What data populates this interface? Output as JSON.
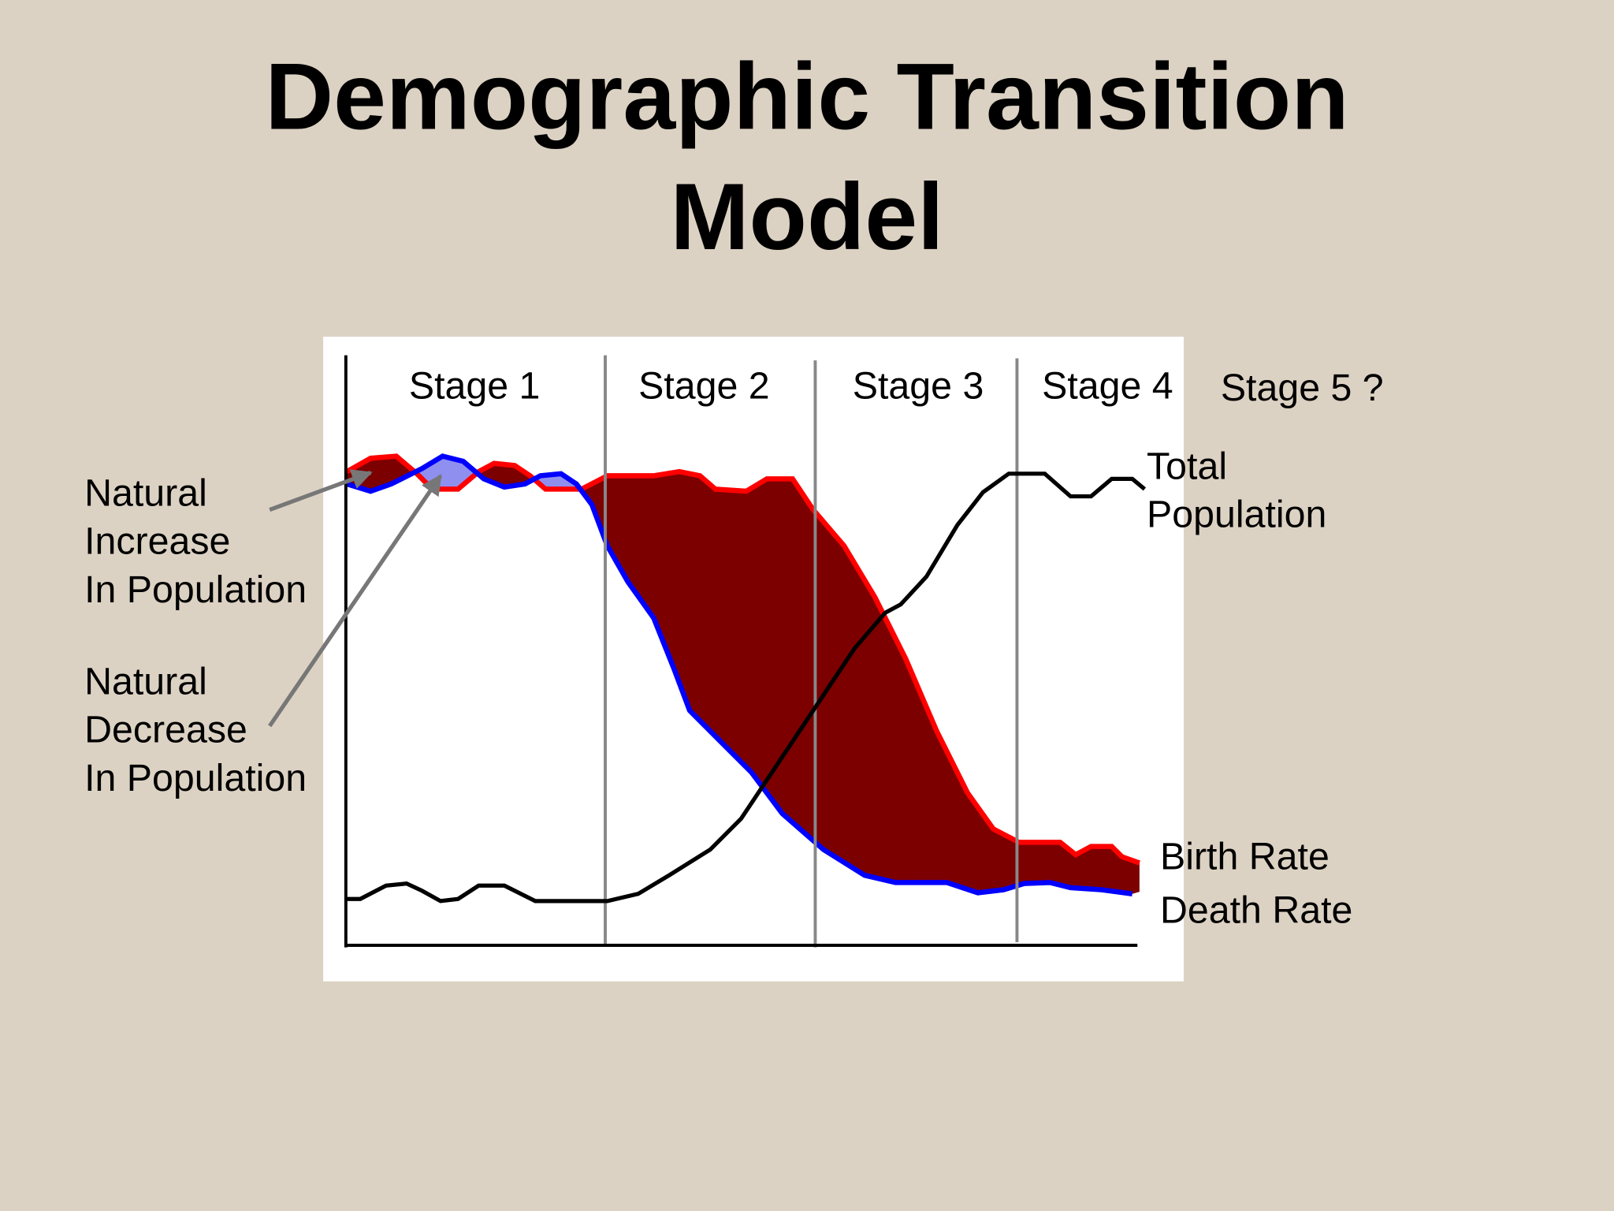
{
  "title": [
    "Demographic Transition",
    "Model"
  ],
  "stages": [
    "Stage 1",
    "Stage 2",
    "Stage 3",
    "Stage 4",
    "Stage 5 ?"
  ],
  "annotations": {
    "natural_increase": [
      "Natural",
      "Increase",
      "In Population"
    ],
    "natural_decrease": [
      "Natural",
      "Decrease",
      "In Population"
    ],
    "total_population": [
      "Total",
      "Population"
    ],
    "birth_rate": "Birth Rate",
    "death_rate": "Death Rate"
  }
}
